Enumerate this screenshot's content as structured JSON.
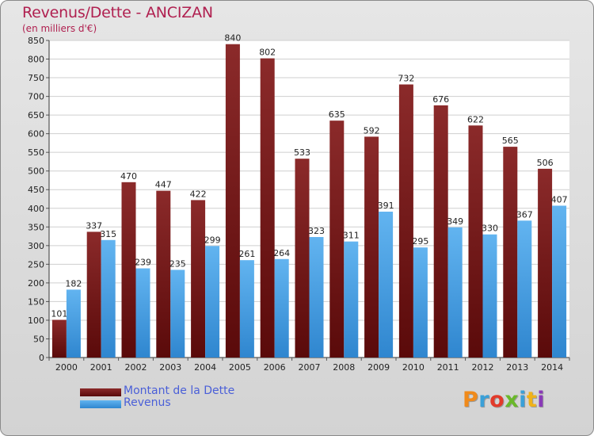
{
  "header": {
    "title": "Revenus/Dette - ANCIZAN",
    "subtitle": "(en milliers d'€)"
  },
  "legend": {
    "items": [
      {
        "label": "Montant de la Dette",
        "color": "#7a1c1c"
      },
      {
        "label": "Revenus",
        "color": "#4aa6e8"
      }
    ]
  },
  "logo": {
    "text": "Proxiti",
    "colors": [
      "#f08a1a",
      "#3aa0d8",
      "#e23a2a",
      "#6ab82a",
      "#3aa0d8",
      "#f0b21a",
      "#8a3ab8"
    ]
  },
  "colors": {
    "debt_top": "#8b2a2a",
    "debt_bottom": "#5a0a0a",
    "revenue_top": "#62b4f0",
    "revenue_bottom": "#2f86cf",
    "title": "#b02050"
  },
  "chart_data": {
    "type": "bar",
    "categories": [
      "2000",
      "2001",
      "2002",
      "2003",
      "2004",
      "2005",
      "2006",
      "2007",
      "2008",
      "2009",
      "2010",
      "2011",
      "2012",
      "2013",
      "2014"
    ],
    "series": [
      {
        "name": "Montant de la Dette",
        "values": [
          101,
          337,
          470,
          447,
          422,
          840,
          802,
          533,
          635,
          592,
          732,
          676,
          622,
          565,
          506
        ]
      },
      {
        "name": "Revenus",
        "values": [
          182,
          315,
          239,
          235,
          299,
          261,
          264,
          323,
          311,
          391,
          295,
          349,
          330,
          367,
          407
        ]
      }
    ],
    "ylim": [
      0,
      850
    ],
    "yticks": [
      0,
      50,
      100,
      150,
      200,
      250,
      300,
      350,
      400,
      450,
      500,
      550,
      600,
      650,
      700,
      750,
      800,
      850
    ],
    "grid": true,
    "legend_position": "bottom-left"
  }
}
